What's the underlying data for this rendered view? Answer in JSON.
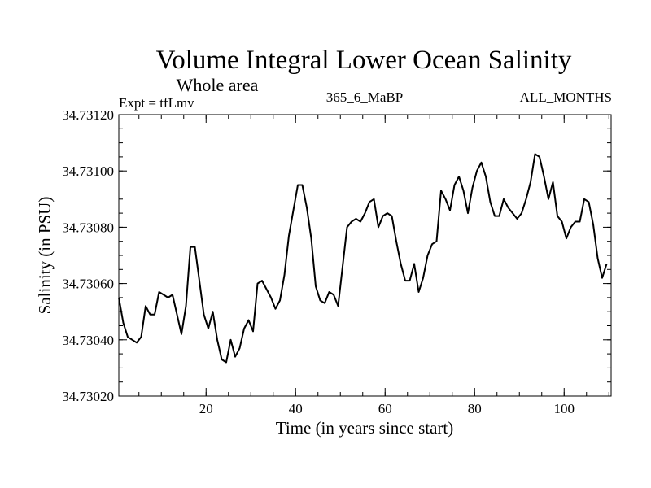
{
  "chart_data": {
    "type": "line",
    "title": "Volume Integral Lower Ocean Salinity",
    "subtitle": "Whole area",
    "annotations": {
      "left": "Expt = tfLmv",
      "center": "365_6_MaBP",
      "right": "ALL_MONTHS"
    },
    "xlabel": "Time (in years since start)",
    "ylabel": "Salinity (in PSU)",
    "xlim": [
      0.5,
      110.5
    ],
    "ylim": [
      34.7302,
      34.7312
    ],
    "xticks": [
      20,
      40,
      60,
      80,
      100
    ],
    "xtick_labels": [
      "20",
      "40",
      "60",
      "80",
      "100"
    ],
    "x_minor_step": 5,
    "yticks": [
      34.7302,
      34.7304,
      34.7306,
      34.7308,
      34.731,
      34.7312
    ],
    "ytick_labels": [
      "34.73020",
      "34.73040",
      "34.73060",
      "34.73080",
      "34.73100",
      "34.73120"
    ],
    "y_minor_step": 5e-05,
    "grid": false,
    "legend": "none",
    "x_start": 0.5,
    "x_step": 1,
    "series": [
      {
        "name": "Salinity",
        "color": "#000000",
        "values": [
          34.73055,
          34.73046,
          34.73041,
          34.7304,
          34.73039,
          34.73041,
          34.73052,
          34.73049,
          34.73049,
          34.73057,
          34.73056,
          34.73055,
          34.73056,
          34.73049,
          34.73042,
          34.73052,
          34.73073,
          34.73073,
          34.73061,
          34.73049,
          34.73044,
          34.7305,
          34.7304,
          34.73033,
          34.73032,
          34.7304,
          34.73034,
          34.73037,
          34.73044,
          34.73047,
          34.73043,
          34.7306,
          34.73061,
          34.73058,
          34.73055,
          34.73051,
          34.73054,
          34.73063,
          34.73077,
          34.73086,
          34.73095,
          34.73095,
          34.73087,
          34.73076,
          34.73059,
          34.73054,
          34.73053,
          34.73057,
          34.73056,
          34.73052,
          34.73066,
          34.7308,
          34.73082,
          34.73083,
          34.73082,
          34.73085,
          34.73089,
          34.7309,
          34.7308,
          34.73084,
          34.73085,
          34.73084,
          34.73075,
          34.73067,
          34.73061,
          34.73061,
          34.73067,
          34.73057,
          34.73062,
          34.7307,
          34.73074,
          34.73075,
          34.73093,
          34.7309,
          34.73086,
          34.73095,
          34.73098,
          34.73093,
          34.73085,
          34.73094,
          34.731,
          34.73103,
          34.73098,
          34.73089,
          34.73084,
          34.73084,
          34.7309,
          34.73087,
          34.73085,
          34.73083,
          34.73085,
          34.7309,
          34.73096,
          34.73106,
          34.73105,
          34.73098,
          34.7309,
          34.73096,
          34.73084,
          34.73082,
          34.73076,
          34.7308,
          34.73082,
          34.73082,
          34.7309,
          34.73089,
          34.73081,
          34.73069,
          34.73062,
          34.73067
        ]
      }
    ]
  }
}
